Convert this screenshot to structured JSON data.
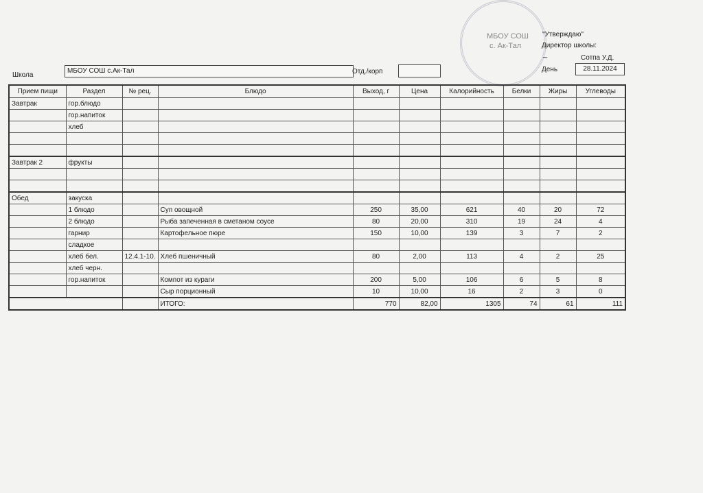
{
  "approval": {
    "title": "\"Утверждаю\"",
    "position": "Директор школы:",
    "name": "Сотпа У.Д.",
    "day_label": "День",
    "date": "28.11.2024"
  },
  "stamp": {
    "line1": "МБОУ СОШ",
    "line2": "с. Ак-Тал"
  },
  "school": {
    "label": "Школа",
    "value": "МБОУ СОШ с.Ак-Тал",
    "dept_label": "Отд./корп",
    "dept_value": ""
  },
  "table": {
    "headers": [
      "Прием пищи",
      "Раздел",
      "№ рец.",
      "Блюдо",
      "Выход, г",
      "Цена",
      "Калорийность",
      "Белки",
      "Жиры",
      "Углеводы"
    ],
    "rows": [
      [
        "Завтрак",
        "гор.блюдо",
        "",
        "",
        "",
        "",
        "",
        "",
        "",
        ""
      ],
      [
        "",
        "гор.напиток",
        "",
        "",
        "",
        "",
        "",
        "",
        "",
        ""
      ],
      [
        "",
        "хлеб",
        "",
        "",
        "",
        "",
        "",
        "",
        "",
        ""
      ],
      [
        "",
        "",
        "",
        "",
        "",
        "",
        "",
        "",
        "",
        ""
      ],
      [
        "",
        "",
        "",
        "",
        "",
        "",
        "",
        "",
        "",
        ""
      ],
      [
        "Завтрак 2",
        "фрукты",
        "",
        "",
        "",
        "",
        "",
        "",
        "",
        ""
      ],
      [
        "",
        "",
        "",
        "",
        "",
        "",
        "",
        "",
        "",
        ""
      ],
      [
        "",
        "",
        "",
        "",
        "",
        "",
        "",
        "",
        "",
        ""
      ],
      [
        "Обед",
        "закуска",
        "",
        "",
        "",
        "",
        "",
        "",
        "",
        ""
      ],
      [
        "",
        "1 блюдо",
        "",
        "Суп овощной",
        "250",
        "35,00",
        "621",
        "40",
        "20",
        "72"
      ],
      [
        "",
        "2 блюдо",
        "",
        "Рыба запеченная в сметаном соусе",
        "80",
        "20,00",
        "310",
        "19",
        "24",
        "4"
      ],
      [
        "",
        "гарнир",
        "",
        "Картофельное пюре",
        "150",
        "10,00",
        "139",
        "3",
        "7",
        "2"
      ],
      [
        "",
        "сладкое",
        "",
        "",
        "",
        "",
        "",
        "",
        "",
        ""
      ],
      [
        "",
        "хлеб бел.",
        "12.4.1-10.",
        "Хлеб пшеничный",
        "80",
        "2,00",
        "113",
        "4",
        "2",
        "25"
      ],
      [
        "",
        "хлеб черн.",
        "",
        "",
        "",
        "",
        "",
        "",
        "",
        ""
      ],
      [
        "",
        "гор.напиток",
        "",
        "Компот из кураги",
        "200",
        "5,00",
        "106",
        "6",
        "5",
        "8"
      ],
      [
        "",
        "",
        "",
        "Сыр порционный",
        "10",
        "10,00",
        "16",
        "2",
        "3",
        "0"
      ]
    ],
    "total": {
      "label": "ИТОГО:",
      "values": [
        "770",
        "82,00",
        "1305",
        "74",
        "61",
        "111"
      ]
    }
  }
}
